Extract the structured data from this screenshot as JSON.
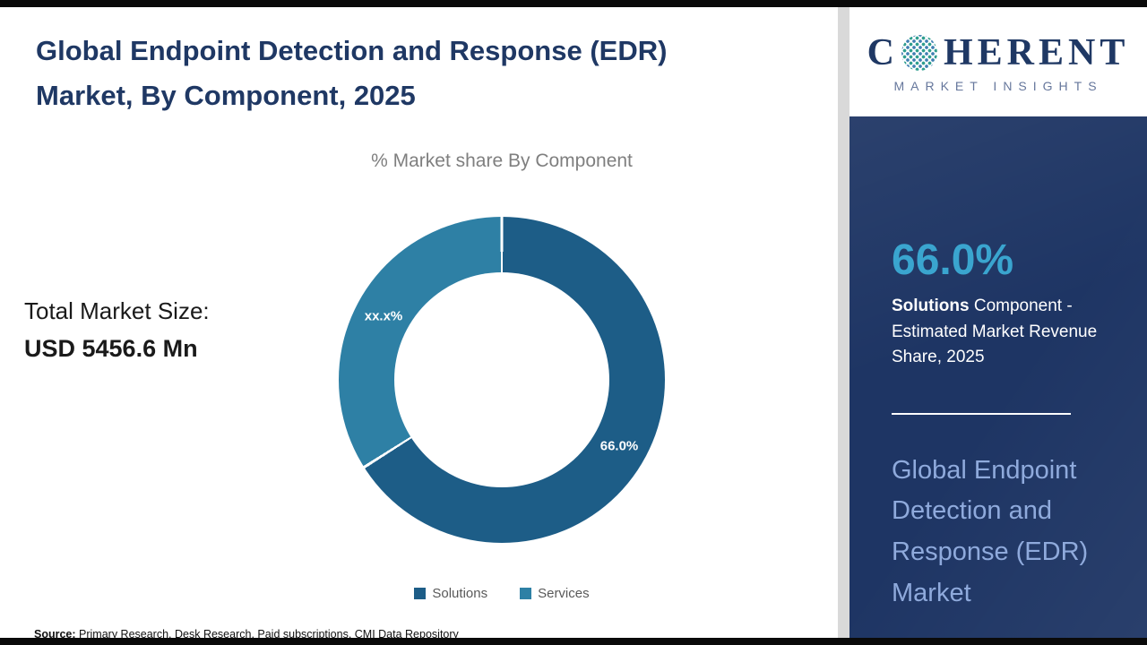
{
  "theme": {
    "navy": "#1e3564",
    "title_blue": "#1f3864",
    "accent": "#3aa5cf",
    "light_blue": "#8faadc",
    "solutions_color": "#1d5d87",
    "services_color": "#2e80a5"
  },
  "header": {
    "title_line1": "Global Endpoint Detection and Response (EDR)",
    "title_line2": "Market, By Component, 2025"
  },
  "chart": {
    "subtitle": "% Market share By Component",
    "total_label": "Total Market Size:",
    "total_value": "USD 5456.6 Mn"
  },
  "chart_data": {
    "type": "pie",
    "donut": true,
    "title": "% Market share By Component",
    "categories": [
      "Solutions",
      "Services"
    ],
    "values": [
      66.0,
      34.0
    ],
    "value_labels": [
      "66.0%",
      "xx.x%"
    ],
    "colors": [
      "#1d5d87",
      "#2e80a5"
    ],
    "legend_position": "bottom"
  },
  "source": {
    "prefix": "Source:",
    "text": " Primary Research, Desk Research, Paid subscriptions, CMI Data Repository"
  },
  "sidebar": {
    "logo": {
      "brand_first": "C",
      "brand_rest": "HERENT",
      "tagline": "MARKET INSIGHTS"
    },
    "stat_value": "66.0%",
    "stat_bold": "Solutions",
    "stat_rest": " Component - Estimated Market Revenue Share, 2025",
    "market_title": "Global Endpoint Detection and Response (EDR) Market"
  }
}
